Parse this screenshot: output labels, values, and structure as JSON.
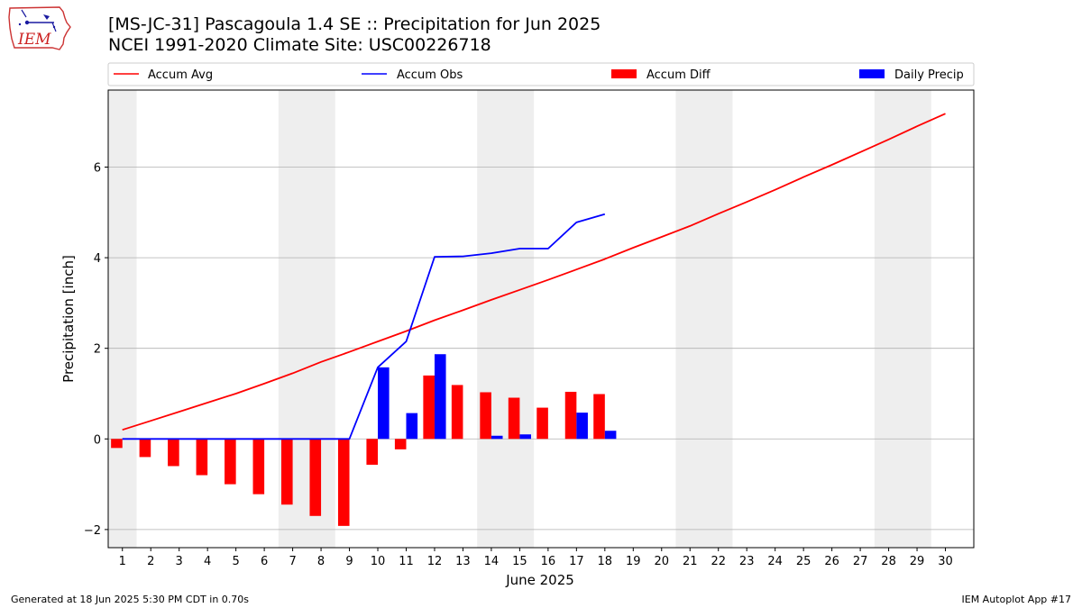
{
  "header": {
    "title_line1": "[MS-JC-31] Pascagoula 1.4 SE :: Precipitation for Jun 2025",
    "title_line2": "NCEI 1991-2020 Climate Site: USC00226718",
    "logo_text": "IEM",
    "logo_icon": "iem-iowa-weather-logo-icon"
  },
  "footer": {
    "generated": "Generated at 18 Jun 2025 5:30 PM CDT in 0.70s",
    "app": "IEM Autoplot App #17"
  },
  "chart_data": {
    "type": "bar",
    "title": "[MS-JC-31] Pascagoula 1.4 SE :: Precipitation for Jun 2025",
    "subtitle": "NCEI 1991-2020 Climate Site: USC00226718",
    "xlabel": "June 2025",
    "ylabel": "Precipitation [inch]",
    "xlim": [
      0.5,
      31
    ],
    "ylim": [
      -2.4,
      7.7
    ],
    "x_ticks": [
      1,
      2,
      3,
      4,
      5,
      6,
      7,
      8,
      9,
      10,
      11,
      12,
      13,
      14,
      15,
      16,
      17,
      18,
      19,
      20,
      21,
      22,
      23,
      24,
      25,
      26,
      27,
      28,
      29,
      30
    ],
    "y_ticks": [
      -2,
      0,
      2,
      4,
      6
    ],
    "grid": "horizontal",
    "legend_position": "top, above plot",
    "weekend_shading": [
      [
        0.5,
        1.5
      ],
      [
        6.5,
        8.5
      ],
      [
        13.5,
        15.5
      ],
      [
        20.5,
        22.5
      ],
      [
        27.5,
        29.5
      ]
    ],
    "colors": {
      "accum_avg": "#ff0000",
      "accum_obs": "#0000ff",
      "accum_diff": "#ff0000",
      "daily_precip": "#0000ff",
      "shade": "#eeeeee",
      "grid": "#b0b0b0"
    },
    "series": [
      {
        "name": "Accum Avg",
        "kind": "line",
        "x": [
          1,
          2,
          3,
          4,
          5,
          6,
          7,
          8,
          9,
          10,
          11,
          12,
          13,
          14,
          15,
          16,
          17,
          18,
          19,
          20,
          21,
          22,
          23,
          24,
          25,
          26,
          27,
          28,
          29,
          30
        ],
        "values": [
          0.2,
          0.4,
          0.6,
          0.8,
          1.0,
          1.22,
          1.45,
          1.7,
          1.92,
          2.15,
          2.38,
          2.62,
          2.84,
          3.07,
          3.29,
          3.51,
          3.74,
          3.97,
          4.22,
          4.46,
          4.7,
          4.97,
          5.23,
          5.5,
          5.78,
          6.05,
          6.33,
          6.61,
          6.9,
          7.18
        ]
      },
      {
        "name": "Accum Obs",
        "kind": "line",
        "x": [
          1,
          2,
          3,
          4,
          5,
          6,
          7,
          8,
          9,
          10,
          11,
          12,
          13,
          14,
          15,
          16,
          17,
          18
        ],
        "values": [
          0,
          0,
          0,
          0,
          0,
          0,
          0,
          0,
          0,
          1.58,
          2.15,
          4.02,
          4.03,
          4.1,
          4.2,
          4.2,
          4.78,
          4.96
        ]
      },
      {
        "name": "Accum Diff",
        "kind": "bar",
        "x": [
          1,
          2,
          3,
          4,
          5,
          6,
          7,
          8,
          9,
          10,
          11,
          12,
          13,
          14,
          15,
          16,
          17,
          18
        ],
        "values": [
          -0.2,
          -0.4,
          -0.6,
          -0.8,
          -1.0,
          -1.22,
          -1.45,
          -1.7,
          -1.92,
          -0.57,
          -0.23,
          1.4,
          1.19,
          1.03,
          0.91,
          0.69,
          1.04,
          0.99
        ]
      },
      {
        "name": "Daily Precip",
        "kind": "bar",
        "x": [
          1,
          2,
          3,
          4,
          5,
          6,
          7,
          8,
          9,
          10,
          11,
          12,
          13,
          14,
          15,
          16,
          17,
          18
        ],
        "values": [
          0,
          0,
          0,
          0,
          0,
          0,
          0,
          0,
          0,
          1.58,
          0.57,
          1.87,
          0,
          0.07,
          0.1,
          0,
          0.58,
          0.18
        ]
      }
    ]
  }
}
